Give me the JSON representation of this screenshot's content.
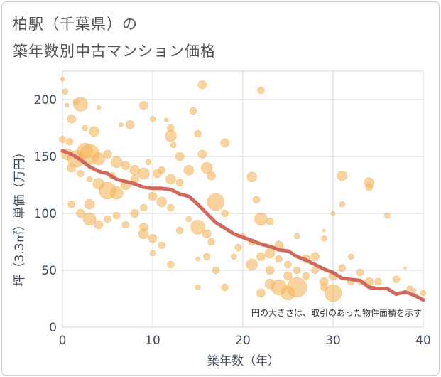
{
  "title_line1": "柏駅（千葉県）の",
  "title_line2": "築年数別中古マンション価格",
  "chart_data": {
    "type": "scatter",
    "xlabel": "築年数（年）",
    "ylabel": "坪（3.3㎡）単価（万円）",
    "xlim": [
      0,
      40
    ],
    "ylim": [
      0,
      225
    ],
    "xticks": [
      0,
      10,
      20,
      30,
      40
    ],
    "yticks": [
      0,
      50,
      100,
      150,
      200
    ],
    "grid": true,
    "note": "円の大きさは、取引のあった物件面積を示す",
    "colors": {
      "bubble": "#f5b55c",
      "line": "#d2685a",
      "grid": "#d0d7e0"
    },
    "trend": {
      "x": [
        0,
        1,
        2,
        3,
        4,
        5,
        6,
        7,
        8,
        9,
        10,
        11,
        12,
        13,
        14,
        15,
        16,
        17,
        18,
        19,
        20,
        21,
        22,
        23,
        24,
        25,
        26,
        27,
        28,
        29,
        30,
        31,
        32,
        33,
        34,
        35,
        36,
        37,
        38,
        39,
        40
      ],
      "y": [
        155,
        152,
        147,
        141,
        137,
        135,
        130,
        128,
        126,
        123,
        122,
        122,
        121,
        117,
        115,
        108,
        100,
        92,
        87,
        82,
        79,
        76,
        73,
        71,
        68,
        67,
        62,
        59,
        55,
        51,
        48,
        43,
        42,
        41,
        35,
        34,
        34,
        29,
        31,
        28,
        24
      ]
    },
    "points": [
      {
        "x": 0,
        "y": 218,
        "s": 3
      },
      {
        "x": 0.3,
        "y": 207,
        "s": 4
      },
      {
        "x": 0.5,
        "y": 195,
        "s": 3
      },
      {
        "x": 1.5,
        "y": 198,
        "s": 4
      },
      {
        "x": 2,
        "y": 196,
        "s": 10
      },
      {
        "x": 1,
        "y": 183,
        "s": 6
      },
      {
        "x": 2.5,
        "y": 175,
        "s": 4
      },
      {
        "x": 3.5,
        "y": 172,
        "s": 7
      },
      {
        "x": 4,
        "y": 193,
        "s": 3
      },
      {
        "x": 0.8,
        "y": 163,
        "s": 5
      },
      {
        "x": 0.5,
        "y": 152,
        "s": 8
      },
      {
        "x": 1.5,
        "y": 148,
        "s": 12
      },
      {
        "x": 2.5,
        "y": 155,
        "s": 11
      },
      {
        "x": 3,
        "y": 152,
        "s": 14
      },
      {
        "x": 4,
        "y": 148,
        "s": 9
      },
      {
        "x": 5,
        "y": 152,
        "s": 6
      },
      {
        "x": 6,
        "y": 145,
        "s": 8
      },
      {
        "x": 7,
        "y": 142,
        "s": 6
      },
      {
        "x": 8,
        "y": 138,
        "s": 7
      },
      {
        "x": 1,
        "y": 140,
        "s": 6
      },
      {
        "x": 2,
        "y": 135,
        "s": 5
      },
      {
        "x": 3,
        "y": 130,
        "s": 4
      },
      {
        "x": 4,
        "y": 126,
        "s": 8
      },
      {
        "x": 5,
        "y": 120,
        "s": 12
      },
      {
        "x": 6,
        "y": 118,
        "s": 9
      },
      {
        "x": 7,
        "y": 125,
        "s": 7
      },
      {
        "x": 8,
        "y": 130,
        "s": 6
      },
      {
        "x": 9,
        "y": 135,
        "s": 8
      },
      {
        "x": 9.5,
        "y": 145,
        "s": 4
      },
      {
        "x": 6.5,
        "y": 178,
        "s": 3
      },
      {
        "x": 7.5,
        "y": 178,
        "s": 6
      },
      {
        "x": 9,
        "y": 195,
        "s": 6
      },
      {
        "x": 10,
        "y": 183,
        "s": 4
      },
      {
        "x": 11.5,
        "y": 182,
        "s": 3
      },
      {
        "x": 12,
        "y": 175,
        "s": 5
      },
      {
        "x": 12,
        "y": 168,
        "s": 8
      },
      {
        "x": 12.3,
        "y": 160,
        "s": 4
      },
      {
        "x": 13,
        "y": 150,
        "s": 6
      },
      {
        "x": 11,
        "y": 138,
        "s": 5
      },
      {
        "x": 12,
        "y": 130,
        "s": 7
      },
      {
        "x": 13,
        "y": 127,
        "s": 5
      },
      {
        "x": 14,
        "y": 138,
        "s": 7
      },
      {
        "x": 14.5,
        "y": 190,
        "s": 5
      },
      {
        "x": 15.5,
        "y": 213,
        "s": 6
      },
      {
        "x": 15,
        "y": 170,
        "s": 5
      },
      {
        "x": 15.5,
        "y": 152,
        "s": 6
      },
      {
        "x": 16,
        "y": 140,
        "s": 8
      },
      {
        "x": 16.5,
        "y": 133,
        "s": 6
      },
      {
        "x": 18,
        "y": 162,
        "s": 6
      },
      {
        "x": 22,
        "y": 208,
        "s": 5
      },
      {
        "x": 10,
        "y": 115,
        "s": 6
      },
      {
        "x": 11,
        "y": 110,
        "s": 7
      },
      {
        "x": 12,
        "y": 105,
        "s": 5
      },
      {
        "x": 9,
        "y": 105,
        "s": 5
      },
      {
        "x": 8,
        "y": 100,
        "s": 6
      },
      {
        "x": 7,
        "y": 90,
        "s": 5
      },
      {
        "x": 3,
        "y": 108,
        "s": 7
      },
      {
        "x": 1,
        "y": 108,
        "s": 5
      },
      {
        "x": 2,
        "y": 100,
        "s": 6
      },
      {
        "x": 3,
        "y": 95,
        "s": 9
      },
      {
        "x": 4,
        "y": 90,
        "s": 6
      },
      {
        "x": 5,
        "y": 95,
        "s": 5
      },
      {
        "x": 6,
        "y": 98,
        "s": 5
      },
      {
        "x": 9,
        "y": 88,
        "s": 6
      },
      {
        "x": 9,
        "y": 82,
        "s": 7
      },
      {
        "x": 10,
        "y": 78,
        "s": 6
      },
      {
        "x": 11,
        "y": 72,
        "s": 5
      },
      {
        "x": 10,
        "y": 65,
        "s": 4
      },
      {
        "x": 12,
        "y": 55,
        "s": 5
      },
      {
        "x": 13,
        "y": 85,
        "s": 5
      },
      {
        "x": 14,
        "y": 95,
        "s": 4
      },
      {
        "x": 15,
        "y": 88,
        "s": 10
      },
      {
        "x": 16,
        "y": 82,
        "s": 6
      },
      {
        "x": 16.5,
        "y": 75,
        "s": 5
      },
      {
        "x": 17,
        "y": 110,
        "s": 12
      },
      {
        "x": 18,
        "y": 100,
        "s": 5
      },
      {
        "x": 16,
        "y": 62,
        "s": 5
      },
      {
        "x": 17,
        "y": 50,
        "s": 5
      },
      {
        "x": 15,
        "y": 60,
        "s": 3
      },
      {
        "x": 18,
        "y": 35,
        "s": 5
      },
      {
        "x": 15,
        "y": 35,
        "s": 4
      },
      {
        "x": 19,
        "y": 62,
        "s": 4
      },
      {
        "x": 19.5,
        "y": 70,
        "s": 5
      },
      {
        "x": 20,
        "y": 80,
        "s": 4
      },
      {
        "x": 21,
        "y": 132,
        "s": 7
      },
      {
        "x": 21.5,
        "y": 112,
        "s": 5
      },
      {
        "x": 22,
        "y": 95,
        "s": 9
      },
      {
        "x": 23,
        "y": 93,
        "s": 5
      },
      {
        "x": 21,
        "y": 75,
        "s": 5
      },
      {
        "x": 22,
        "y": 62,
        "s": 6
      },
      {
        "x": 21,
        "y": 55,
        "s": 8
      },
      {
        "x": 23,
        "y": 65,
        "s": 7
      },
      {
        "x": 23,
        "y": 50,
        "s": 6
      },
      {
        "x": 23,
        "y": 38,
        "s": 7
      },
      {
        "x": 22,
        "y": 30,
        "s": 6
      },
      {
        "x": 24,
        "y": 72,
        "s": 6
      },
      {
        "x": 24,
        "y": 60,
        "s": 5
      },
      {
        "x": 25,
        "y": 55,
        "s": 5
      },
      {
        "x": 25,
        "y": 45,
        "s": 6
      },
      {
        "x": 24,
        "y": 35,
        "s": 11
      },
      {
        "x": 25,
        "y": 30,
        "s": 10
      },
      {
        "x": 26,
        "y": 35,
        "s": 14
      },
      {
        "x": 26,
        "y": 50,
        "s": 5
      },
      {
        "x": 26,
        "y": 80,
        "s": 4
      },
      {
        "x": 27,
        "y": 60,
        "s": 6
      },
      {
        "x": 27,
        "y": 45,
        "s": 5
      },
      {
        "x": 28,
        "y": 62,
        "s": 6
      },
      {
        "x": 28,
        "y": 50,
        "s": 5
      },
      {
        "x": 29,
        "y": 40,
        "s": 6
      },
      {
        "x": 29,
        "y": 35,
        "s": 5
      },
      {
        "x": 30,
        "y": 30,
        "s": 12
      },
      {
        "x": 30,
        "y": 45,
        "s": 6
      },
      {
        "x": 29,
        "y": 78,
        "s": 4
      },
      {
        "x": 29,
        "y": 85,
        "s": 2
      },
      {
        "x": 30,
        "y": 100,
        "s": 3
      },
      {
        "x": 31,
        "y": 108,
        "s": 4
      },
      {
        "x": 31,
        "y": 133,
        "s": 7
      },
      {
        "x": 32,
        "y": 62,
        "s": 4
      },
      {
        "x": 31,
        "y": 52,
        "s": 5
      },
      {
        "x": 33,
        "y": 48,
        "s": 5
      },
      {
        "x": 32,
        "y": 40,
        "s": 5
      },
      {
        "x": 33,
        "y": 40,
        "s": 4
      },
      {
        "x": 34,
        "y": 127,
        "s": 7
      },
      {
        "x": 34,
        "y": 123,
        "s": 5
      },
      {
        "x": 35,
        "y": 40,
        "s": 5
      },
      {
        "x": 36,
        "y": 98,
        "s": 4
      },
      {
        "x": 37,
        "y": 42,
        "s": 5
      },
      {
        "x": 38,
        "y": 52,
        "s": 2
      },
      {
        "x": 38.5,
        "y": 34,
        "s": 4
      },
      {
        "x": 39,
        "y": 32,
        "s": 3
      },
      {
        "x": 40,
        "y": 30,
        "s": 4
      },
      {
        "x": 34,
        "y": 40,
        "s": 6
      },
      {
        "x": 0,
        "y": 165,
        "s": 5
      },
      {
        "x": 5.5,
        "y": 133,
        "s": 5
      },
      {
        "x": 10.5,
        "y": 135,
        "s": 6
      }
    ]
  }
}
